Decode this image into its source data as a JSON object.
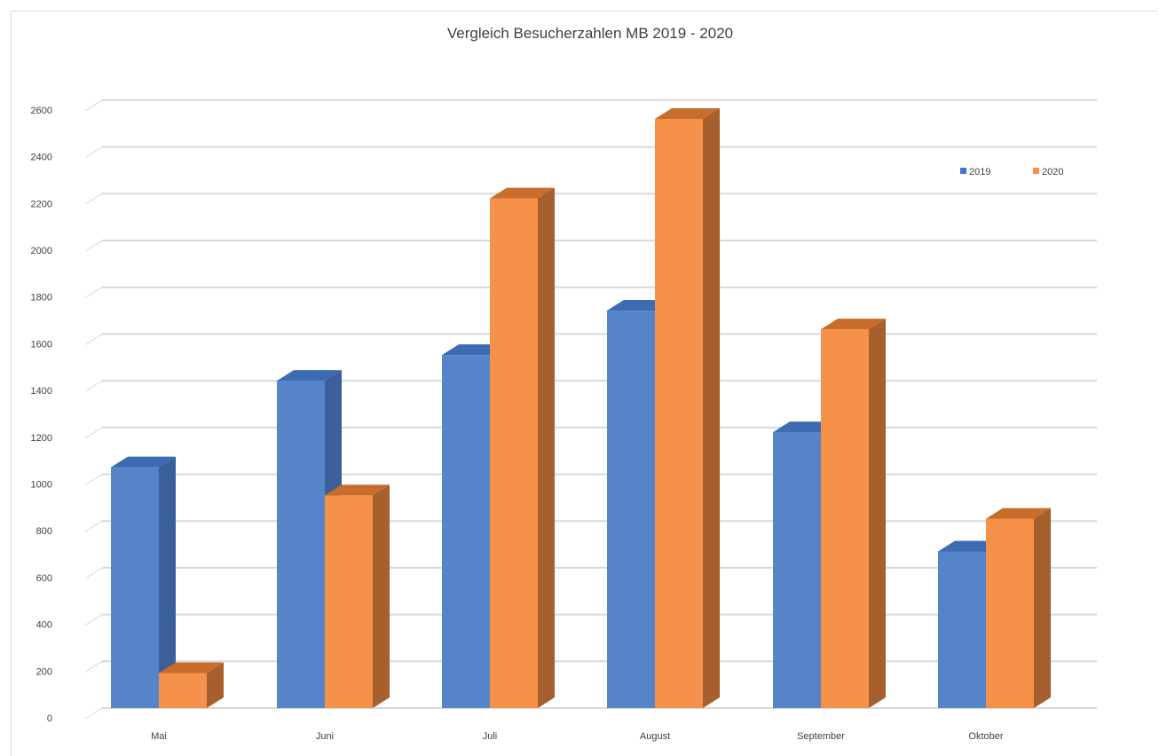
{
  "chart_data": {
    "type": "bar",
    "title": "Vergleich Besucherzahlen MB 2019 - 2020",
    "xlabel": "",
    "ylabel": "",
    "categories": [
      "Mai",
      "Juni",
      "Juli",
      "August",
      "September",
      "Oktober"
    ],
    "series": [
      {
        "name": "2019",
        "values": [
          1030,
          1400,
          1510,
          1700,
          1180,
          670
        ]
      },
      {
        "name": "2020",
        "values": [
          150,
          910,
          2180,
          2520,
          1620,
          810
        ]
      }
    ],
    "ylim": [
      0,
      2600
    ],
    "yticks": [
      0,
      200,
      400,
      600,
      800,
      1000,
      1200,
      1400,
      1600,
      1800,
      2000,
      2200,
      2400,
      2600
    ],
    "grid": true,
    "legend_position": "right",
    "colors": {
      "2019_front": "#5585c8",
      "2019_top": "#3d6cb3",
      "2019_side": "#3b5f98",
      "2020_front": "#f5914b",
      "2020_top": "#c96d2c",
      "2020_side": "#a75f2d",
      "grid": "#d9d9d9",
      "text": "#404040"
    }
  }
}
